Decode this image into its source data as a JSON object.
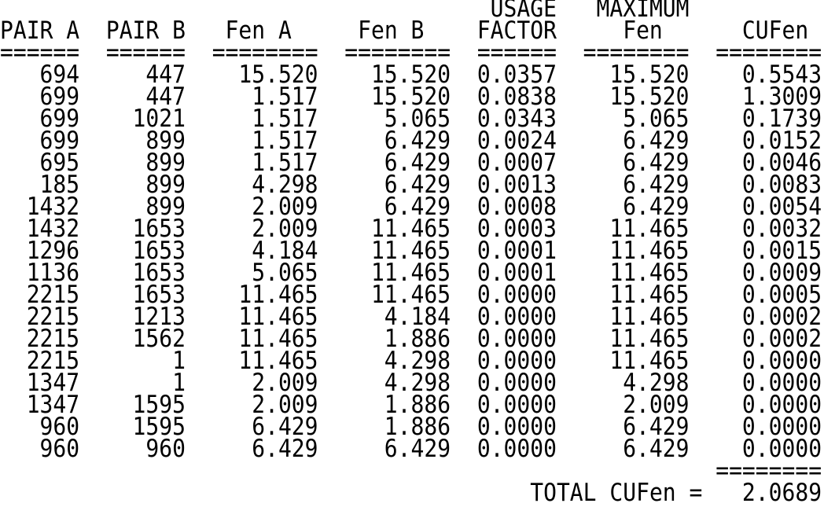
{
  "headers_top": {
    "usage": "USAGE",
    "maximum": "MAXIMUM"
  },
  "headers": [
    "PAIR A",
    "PAIR B",
    "Fen A",
    "Fen B",
    "FACTOR",
    "Fen",
    "CUFen"
  ],
  "separators": [
    "======",
    "======",
    "========",
    "========",
    "======",
    "========",
    "========"
  ],
  "rows": [
    [
      "694",
      "447",
      "15.520",
      "15.520",
      "0.0357",
      "15.520",
      "0.5543"
    ],
    [
      "699",
      "447",
      "1.517",
      "15.520",
      "0.0838",
      "15.520",
      "1.3009"
    ],
    [
      "699",
      "1021",
      "1.517",
      "5.065",
      "0.0343",
      "5.065",
      "0.1739"
    ],
    [
      "699",
      "899",
      "1.517",
      "6.429",
      "0.0024",
      "6.429",
      "0.0152"
    ],
    [
      "695",
      "899",
      "1.517",
      "6.429",
      "0.0007",
      "6.429",
      "0.0046"
    ],
    [
      "185",
      "899",
      "4.298",
      "6.429",
      "0.0013",
      "6.429",
      "0.0083"
    ],
    [
      "1432",
      "899",
      "2.009",
      "6.429",
      "0.0008",
      "6.429",
      "0.0054"
    ],
    [
      "1432",
      "1653",
      "2.009",
      "11.465",
      "0.0003",
      "11.465",
      "0.0032"
    ],
    [
      "1296",
      "1653",
      "4.184",
      "11.465",
      "0.0001",
      "11.465",
      "0.0015"
    ],
    [
      "1136",
      "1653",
      "5.065",
      "11.465",
      "0.0001",
      "11.465",
      "0.0009"
    ],
    [
      "2215",
      "1653",
      "11.465",
      "11.465",
      "0.0000",
      "11.465",
      "0.0005"
    ],
    [
      "2215",
      "1213",
      "11.465",
      "4.184",
      "0.0000",
      "11.465",
      "0.0002"
    ],
    [
      "2215",
      "1562",
      "11.465",
      "1.886",
      "0.0000",
      "11.465",
      "0.0002"
    ],
    [
      "2215",
      "1",
      "11.465",
      "4.298",
      "0.0000",
      "11.465",
      "0.0000"
    ],
    [
      "1347",
      "1",
      "2.009",
      "4.298",
      "0.0000",
      "4.298",
      "0.0000"
    ],
    [
      "1347",
      "1595",
      "2.009",
      "1.886",
      "0.0000",
      "2.009",
      "0.0000"
    ],
    [
      "960",
      "1595",
      "6.429",
      "1.886",
      "0.0000",
      "6.429",
      "0.0000"
    ],
    [
      "960",
      "960",
      "6.429",
      "6.429",
      "0.0000",
      "6.429",
      "0.0000"
    ]
  ],
  "total": {
    "separator": "========",
    "label": "TOTAL CUFen =",
    "value": "2.0689"
  }
}
